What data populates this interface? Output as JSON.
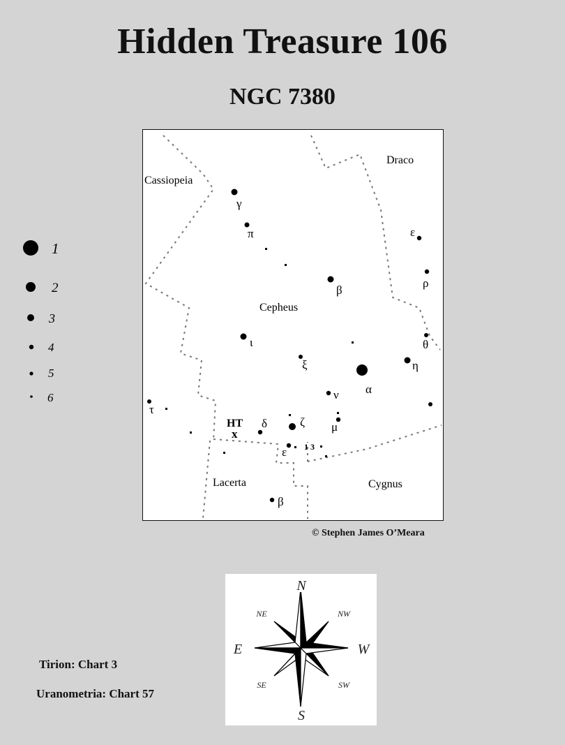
{
  "header": {
    "title": "Hidden Treasure 106",
    "subtitle": "NGC 7380"
  },
  "chart_labels": {
    "constellations": [
      "Cassiopeia",
      "Draco",
      "Cepheus",
      "Lacerta",
      "Cygnus"
    ],
    "stars": [
      "γ",
      "π",
      "β",
      "ε",
      "ρ",
      "θ",
      "ι",
      "ξ",
      "α",
      "η",
      "ν",
      "μ",
      "τ",
      "δ",
      "ζ",
      "ε",
      "β"
    ],
    "star_13": "1 3",
    "target_label": "HT",
    "target_marker": "x"
  },
  "legend": {
    "magnitudes": [
      "1",
      "2",
      "3",
      "4",
      "5",
      "6"
    ]
  },
  "credit": "© Stephen James O’Meara",
  "compass": {
    "n": "N",
    "s": "S",
    "e": "E",
    "w": "W",
    "ne": "NE",
    "nw": "NW",
    "se": "SE",
    "sw": "SW"
  },
  "references": {
    "tirion": "Tirion: Chart 3",
    "uranometria": "Uranometria: Chart 57"
  }
}
